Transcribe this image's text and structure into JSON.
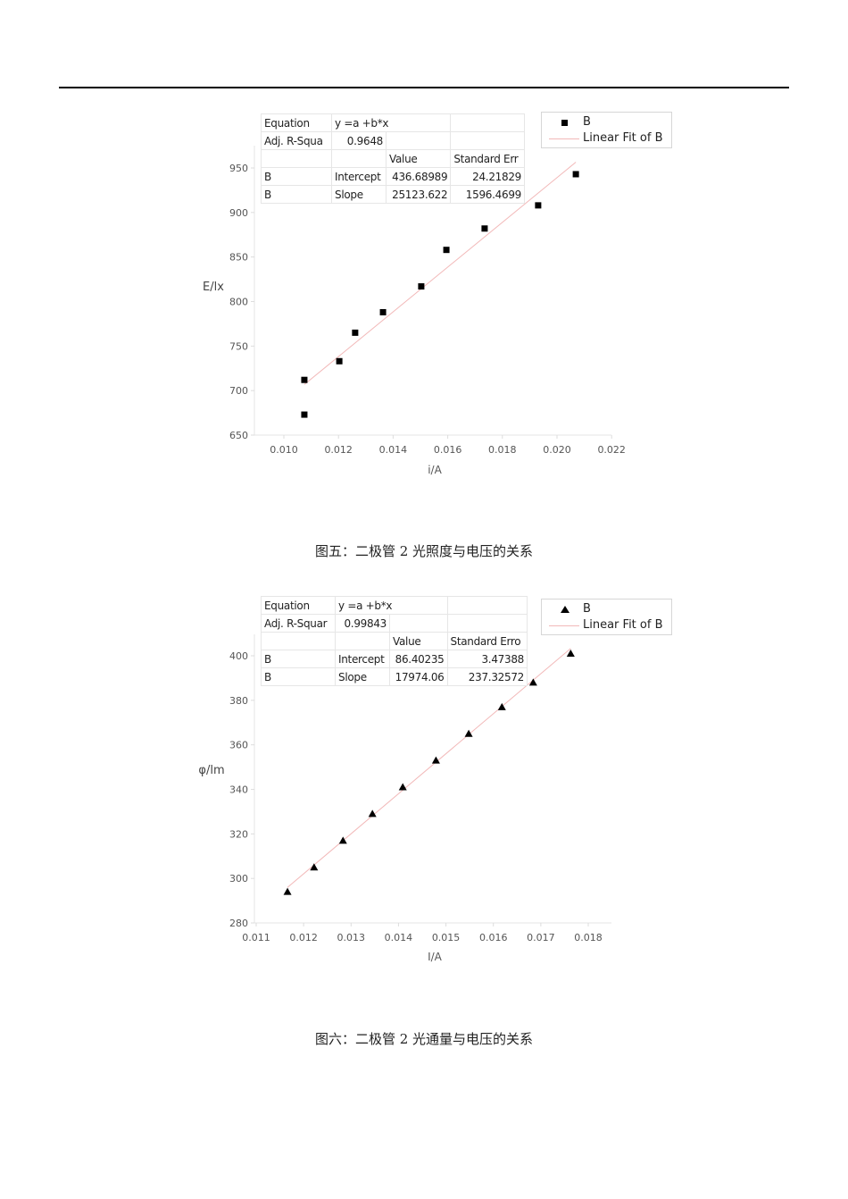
{
  "chart_data": [
    {
      "type": "scatter",
      "xlabel": "i/A",
      "ylabel": "E/lx",
      "xlim": [
        0.009,
        0.022
      ],
      "ylim": [
        650,
        975
      ],
      "xticks": [
        "0.010",
        "0.012",
        "0.014",
        "0.016",
        "0.018",
        "0.020",
        "0.022"
      ],
      "yticks": [
        "650",
        "700",
        "750",
        "800",
        "850",
        "900",
        "950"
      ],
      "grid": false,
      "marker": "square",
      "series": [
        {
          "name": "B",
          "x": [
            0.01075,
            0.01075,
            0.01203,
            0.01261,
            0.01363,
            0.01503,
            0.01595,
            0.01735,
            0.01931,
            0.02069
          ],
          "y": [
            673,
            712,
            733,
            765,
            788,
            817,
            858,
            882,
            908,
            943
          ]
        }
      ],
      "fit": {
        "name": "Linear Fit of B",
        "color": "#f2b8b8",
        "intercept": 436.68989,
        "slope": 25123.622
      },
      "legend_position": "top-right",
      "legend": [
        "B",
        "Linear Fit of B"
      ],
      "fit_table": {
        "equation_label": "Equation",
        "equation": "y =a +b*x",
        "r2_label": "Adj. R-Squa",
        "r2": "0.9648",
        "value_header": "Value",
        "error_header": "Standard Err",
        "rows": [
          {
            "name": "B",
            "param": "Intercept",
            "value": "436.68989",
            "error": "24.21829"
          },
          {
            "name": "B",
            "param": "Slope",
            "value": "25123.622",
            "error": "1596.4699"
          }
        ]
      }
    },
    {
      "type": "scatter",
      "xlabel": "I/A",
      "ylabel": "φ/lm",
      "xlim": [
        0.011,
        0.0185
      ],
      "ylim": [
        280,
        410
      ],
      "xticks": [
        "0.011",
        "0.012",
        "0.013",
        "0.014",
        "0.015",
        "0.016",
        "0.017",
        "0.018"
      ],
      "yticks": [
        "280",
        "300",
        "320",
        "340",
        "360",
        "380",
        "400"
      ],
      "grid": false,
      "marker": "triangle",
      "series": [
        {
          "name": "B",
          "x": [
            0.01166,
            0.01222,
            0.01283,
            0.01345,
            0.01409,
            0.01479,
            0.01548,
            0.01618,
            0.01684,
            0.01763
          ],
          "y": [
            294,
            305,
            317,
            329,
            341,
            353,
            365,
            377,
            388,
            401
          ]
        }
      ],
      "fit": {
        "name": "Linear Fit of B",
        "color": "#f2b8b8",
        "intercept": 86.40235,
        "slope": 17974.06
      },
      "legend_position": "top-right",
      "legend": [
        "B",
        "Linear Fit of B"
      ],
      "fit_table": {
        "equation_label": "Equation",
        "equation": "y =a +b*x",
        "r2_label": "Adj. R-Squar",
        "r2": "0.99843",
        "value_header": "Value",
        "error_header": "Standard Erro",
        "rows": [
          {
            "name": "B",
            "param": "Intercept",
            "value": "86.40235",
            "error": "3.47388"
          },
          {
            "name": "B",
            "param": "Slope",
            "value": "17974.06",
            "error": "237.32572"
          }
        ]
      }
    }
  ],
  "captions": [
    "图五：二极管 2 光照度与电压的关系",
    "图六：二极管 2 光通量与电压的关系"
  ]
}
